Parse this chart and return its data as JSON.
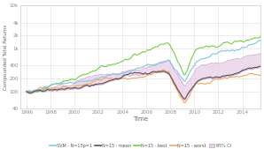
{
  "title": "",
  "xlabel": "Time",
  "ylabel": "Compounded Total Returns",
  "xlim": [
    1995.5,
    2015.5
  ],
  "ylim_log": [
    40,
    10000
  ],
  "yticks": [
    40,
    100,
    200,
    400,
    1000,
    2000,
    4000,
    10000
  ],
  "ytick_labels": [
    "40",
    "100",
    "200",
    "400",
    "1k",
    "2k",
    "4k",
    "10k"
  ],
  "xticks": [
    1996,
    1998,
    2000,
    2002,
    2004,
    2006,
    2008,
    2010,
    2012,
    2014
  ],
  "color_svm": "#7ec8e3",
  "color_mean": "#555555",
  "color_best": "#77cc44",
  "color_worst": "#f4a460",
  "color_ci_fill": "#e8d0e8",
  "color_ci_edge": "#cc99cc",
  "bg_color": "#ffffff",
  "grid_color": "#e0e0e0",
  "legend_entries": [
    "SVM - N=15p=1",
    "N=15 - mean",
    "N=15 - best",
    "N=15 - worst",
    "95% CI"
  ]
}
